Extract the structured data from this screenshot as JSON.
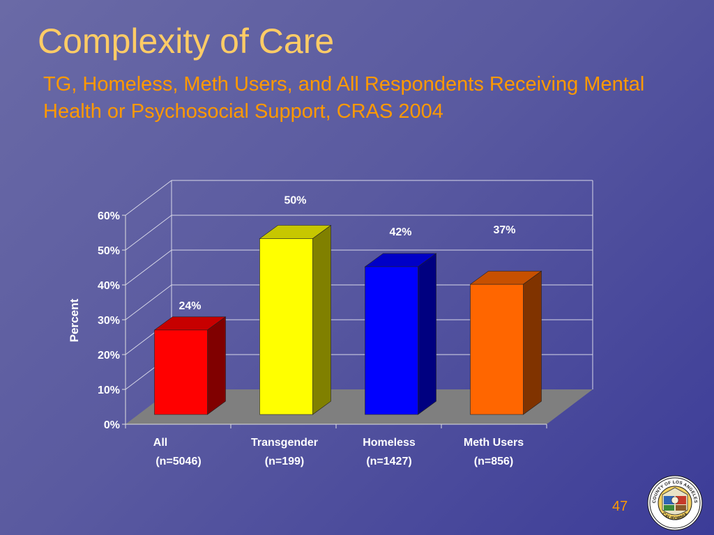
{
  "slide": {
    "title": "Complexity of Care",
    "subtitle": "TG, Homeless, Meth Users, and All Respondents Receiving Mental Health or Psychosocial Support, CRAS 2004",
    "page_number": "47"
  },
  "seal": {
    "icon": "county-of-los-angeles-seal-icon",
    "text_top": "COUNTY OF LOS ANGELES",
    "text_bottom": "CALIFORNIA"
  },
  "chart_data": {
    "type": "bar",
    "title": "",
    "ylabel": "Percent",
    "xlabel": "",
    "ylim": [
      0,
      60
    ],
    "yticks": [
      "0%",
      "10%",
      "20%",
      "30%",
      "40%",
      "50%",
      "60%"
    ],
    "categories": [
      "All",
      "Transgender",
      "Homeless",
      "Meth Users"
    ],
    "category_sublabels": [
      "(n=5046)",
      "(n=199)",
      "(n=1427)",
      "(n=856)"
    ],
    "values": [
      24,
      50,
      42,
      37
    ],
    "data_labels": [
      "24%",
      "50%",
      "42%",
      "37%"
    ],
    "colors": [
      "#ff0000",
      "#ffff00",
      "#0000ff",
      "#ff6600"
    ],
    "grid": true,
    "style": "3d"
  }
}
